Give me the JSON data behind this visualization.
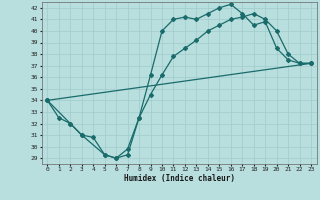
{
  "xlabel": "Humidex (Indice chaleur)",
  "xlim": [
    -0.5,
    23.5
  ],
  "ylim": [
    28.5,
    42.5
  ],
  "yticks": [
    29,
    30,
    31,
    32,
    33,
    34,
    35,
    36,
    37,
    38,
    39,
    40,
    41,
    42
  ],
  "xticks": [
    0,
    1,
    2,
    3,
    4,
    5,
    6,
    7,
    8,
    9,
    10,
    11,
    12,
    13,
    14,
    15,
    16,
    17,
    18,
    19,
    20,
    21,
    22,
    23
  ],
  "bg_color": "#b8dede",
  "line_color": "#1a6b6b",
  "grid_color": "#a0cccc",
  "line1_x": [
    0,
    1,
    2,
    3,
    4,
    5,
    6,
    7,
    8,
    9,
    10,
    11,
    12,
    13,
    14,
    15,
    16,
    17,
    18,
    19,
    20,
    21,
    22,
    23
  ],
  "line1_y": [
    34.0,
    32.5,
    32.0,
    31.0,
    30.8,
    29.3,
    29.0,
    29.3,
    32.5,
    36.2,
    40.0,
    41.0,
    41.2,
    41.0,
    41.5,
    42.0,
    42.3,
    41.5,
    40.5,
    40.8,
    38.5,
    37.5,
    37.2,
    37.2
  ],
  "line2_x": [
    0,
    2,
    3,
    5,
    6,
    7,
    8,
    9,
    10,
    11,
    12,
    13,
    14,
    15,
    16,
    17,
    18,
    19,
    20,
    21,
    22,
    23
  ],
  "line2_y": [
    34.0,
    32.0,
    31.0,
    29.3,
    29.0,
    29.8,
    32.5,
    34.5,
    36.2,
    37.8,
    38.5,
    39.2,
    40.0,
    40.5,
    41.0,
    41.2,
    41.5,
    41.0,
    40.0,
    38.0,
    37.2,
    37.2
  ],
  "line3_x": [
    0,
    23
  ],
  "line3_y": [
    34.0,
    37.2
  ]
}
